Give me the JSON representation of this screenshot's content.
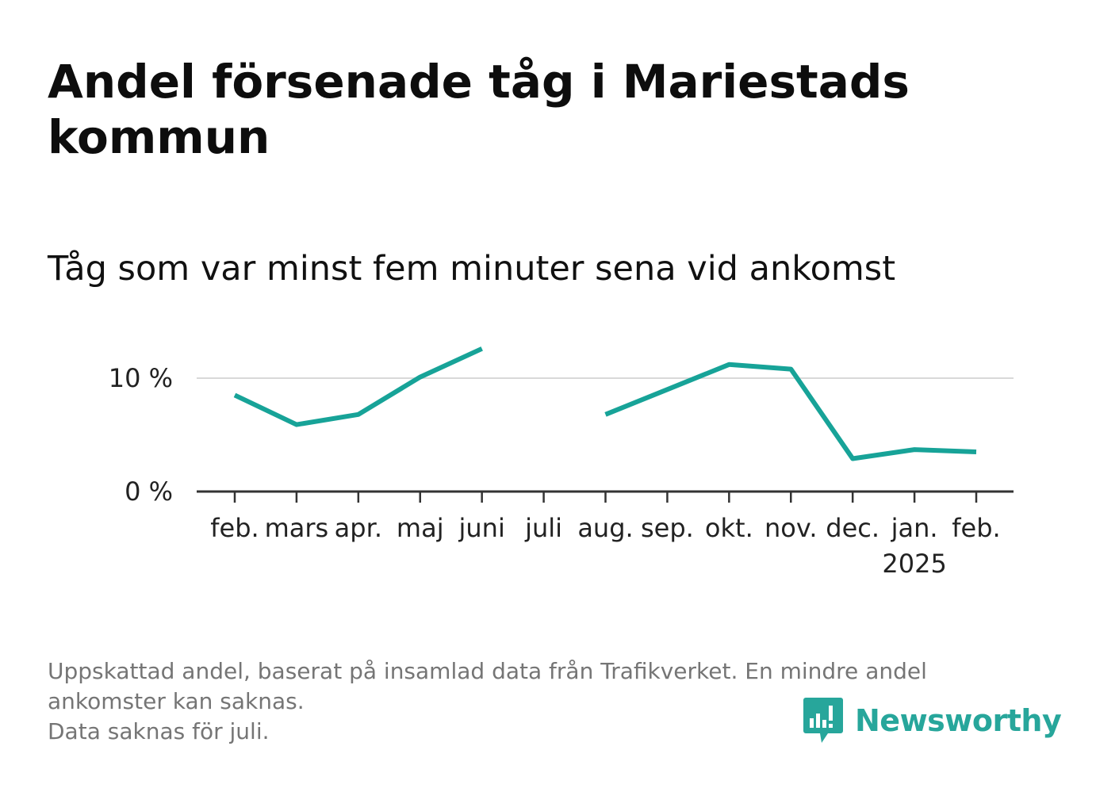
{
  "title": "Andel försenade tåg i Mariestads kommun",
  "subtitle": "Tåg som var minst fem minuter sena vid ankomst",
  "footnote": {
    "line1": "Uppskattad andel, baserat på insamlad data från Trafikverket. En mindre andel",
    "line2": "ankomster kan saknas.",
    "line3": "Data saknas för juli."
  },
  "logo": {
    "text": "Newsworthy",
    "icon": "newsworthy-logo-icon"
  },
  "colors": {
    "line": "#17a398",
    "grid": "#d9d9d9",
    "axis": "#333333",
    "brand": "#27a69b"
  },
  "chart_data": {
    "type": "line",
    "categories": [
      "feb.",
      "mars",
      "apr.",
      "maj",
      "juni",
      "juli",
      "aug.",
      "sep.",
      "okt.",
      "nov.",
      "dec.",
      "jan.",
      "feb."
    ],
    "year_labels": [
      "",
      "",
      "",
      "",
      "",
      "",
      "",
      "",
      "",
      "",
      "",
      "2025",
      ""
    ],
    "values": [
      8.5,
      5.9,
      6.8,
      10.1,
      12.6,
      null,
      6.8,
      9.0,
      11.2,
      10.8,
      2.9,
      3.7,
      3.5
    ],
    "ylim": [
      0,
      14
    ],
    "yticks": [
      0,
      10
    ],
    "ytick_labels": [
      "0 %",
      "10 %"
    ],
    "grid": true,
    "xlabel": "",
    "ylabel": ""
  }
}
